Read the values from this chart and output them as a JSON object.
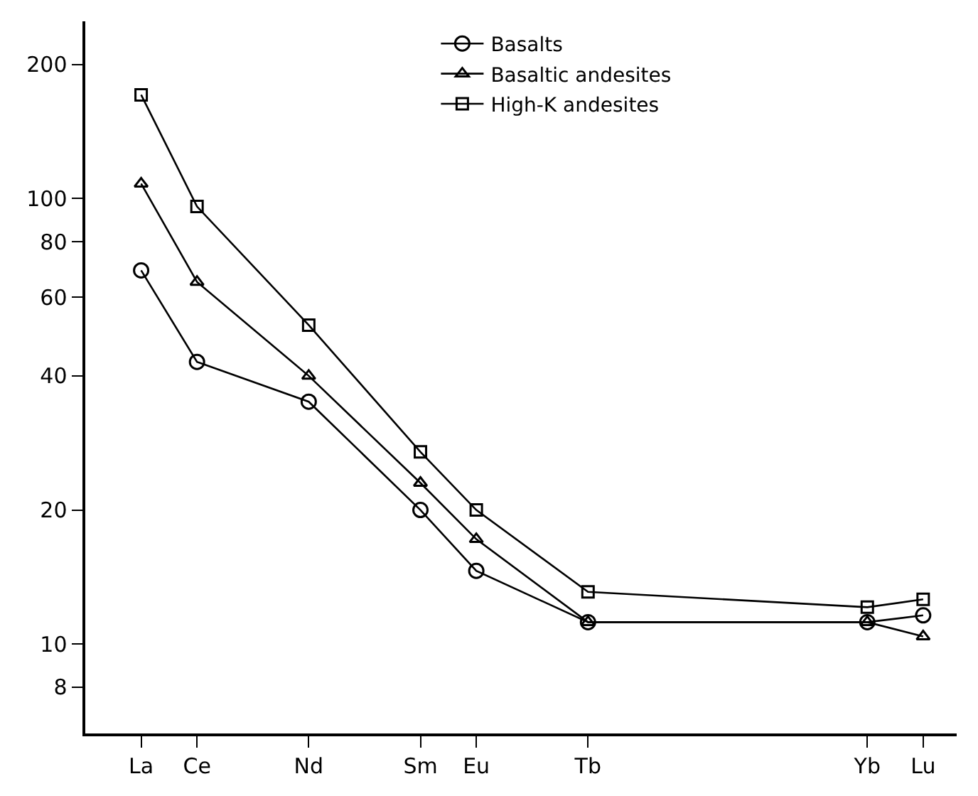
{
  "chart_data": {
    "type": "line",
    "log": "y",
    "legend": "top right",
    "line_style": "solid",
    "categories": [
      "La",
      "Ce",
      null,
      "Nd",
      null,
      "Sm",
      "Eu",
      null,
      "Tb",
      null,
      null,
      null,
      null,
      "Yb",
      "Lu"
    ],
    "ylim": [
      6.3,
      250
    ],
    "yticks": [
      8,
      10,
      20,
      40,
      60,
      80,
      100,
      200
    ],
    "series": [
      {
        "name": "Basalts",
        "color": "#000000",
        "marker": "circle",
        "values": [
          69,
          43,
          null,
          35,
          null,
          20,
          14.6,
          null,
          11.2,
          null,
          null,
          null,
          null,
          11.2,
          11.6
        ]
      },
      {
        "name": "Basaltic andesites",
        "color": "#000000",
        "marker": "triangle",
        "values": [
          108,
          65,
          null,
          40,
          null,
          23,
          17.2,
          null,
          11.2,
          null,
          null,
          null,
          null,
          11.2,
          10.4
        ]
      },
      {
        "name": "High-K andesites",
        "color": "#000000",
        "marker": "square",
        "values": [
          171,
          96,
          null,
          52,
          null,
          27,
          20,
          null,
          13.1,
          null,
          null,
          null,
          null,
          12.1,
          12.6
        ]
      }
    ]
  }
}
